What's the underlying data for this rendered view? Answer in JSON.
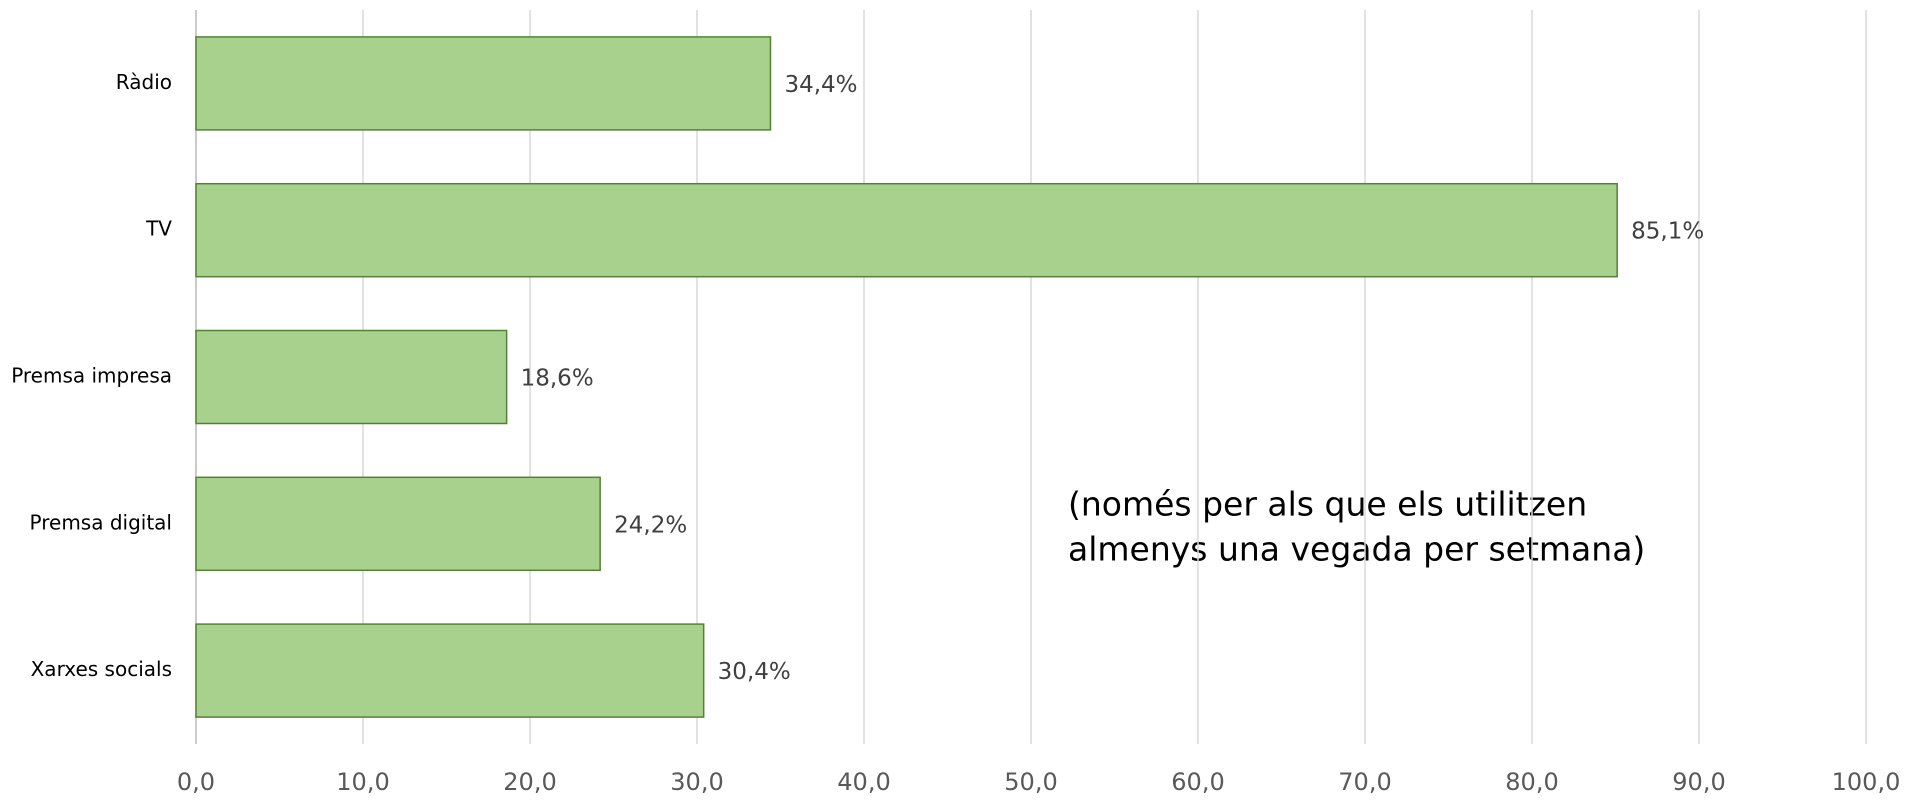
{
  "chart_data": {
    "type": "barh",
    "categories": [
      "Ràdio",
      "TV",
      "Premsa impresa",
      "Premsa digital",
      "Xarxes socials"
    ],
    "values": [
      34.4,
      85.1,
      18.6,
      24.2,
      30.4
    ],
    "value_labels": [
      "34,4%",
      "85,1%",
      "18,6%",
      "24,2%",
      "30,4%"
    ],
    "color": "#a9d18e",
    "edge_color": "#548235",
    "xlim": [
      0,
      100
    ],
    "xticks": [
      {
        "value": 0,
        "label": "0,0"
      },
      {
        "value": 10,
        "label": "10,0"
      },
      {
        "value": 20,
        "label": "20,0"
      },
      {
        "value": 30,
        "label": "30,0"
      },
      {
        "value": 40,
        "label": "40,0"
      },
      {
        "value": 50,
        "label": "50,0"
      },
      {
        "value": 60,
        "label": "60,0"
      },
      {
        "value": 70,
        "label": "70,0"
      },
      {
        "value": 80,
        "label": "80,0"
      },
      {
        "value": 90,
        "label": "90,0"
      },
      {
        "value": 100,
        "label": "100,0"
      }
    ],
    "grid": true,
    "annotation": [
      "(només per als que els utilitzen",
      "almenys una vegada per setmana)"
    ]
  }
}
